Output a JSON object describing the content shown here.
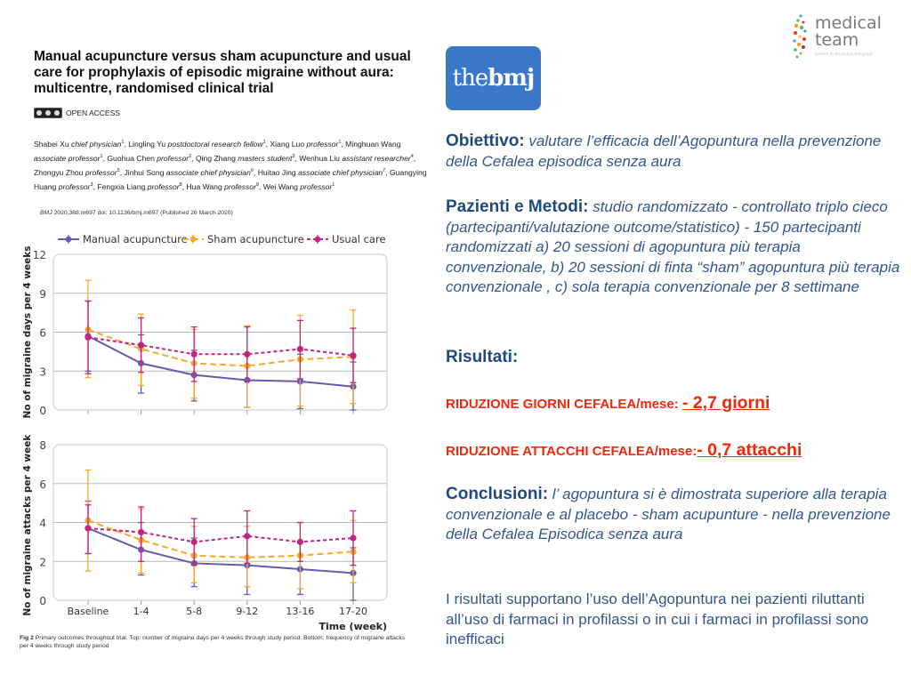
{
  "paper": {
    "title": "Manual acupuncture versus sham acupuncture and usual care for prophylaxis of episodic migraine without aura: multicentre, randomised clinical trial",
    "open_access": "OPEN ACCESS",
    "authors": [
      {
        "name": "Shabei Xu",
        "role": "chief physician",
        "aff": "1"
      },
      {
        "name": "Lingling Yu",
        "role": "postdoctoral research fellow",
        "aff": "1"
      },
      {
        "name": "Xiang Luo",
        "role": "professor",
        "aff": "1"
      },
      {
        "name": "Minghuan Wang",
        "role": "associate professor",
        "aff": "1"
      },
      {
        "name": "Guohua Chen",
        "role": "professor",
        "aff": "2"
      },
      {
        "name": "Qing Zhang",
        "role": "masters student",
        "aff": "3"
      },
      {
        "name": "Wenhua Liu",
        "role": "assistant researcher",
        "aff": "4"
      },
      {
        "name": "Zhongyu Zhou",
        "role": "professor",
        "aff": "5"
      },
      {
        "name": "Jinhui Song",
        "role": "associate chief physician",
        "aff": "6"
      },
      {
        "name": "Huitao Jing",
        "role": "associate chief physician",
        "aff": "7"
      },
      {
        "name": "Guangying Huang",
        "role": "professor",
        "aff": "3"
      },
      {
        "name": "Fengxia Liang",
        "role": "professor",
        "aff": "8"
      },
      {
        "name": "Hua Wang",
        "role": "professor",
        "aff": "8"
      },
      {
        "name": "Wei Wang",
        "role": "professor",
        "aff": "1"
      }
    ],
    "citation_journal": "BMJ",
    "citation_rest": " 2020;368:m697 doi: 10.1136/bmj.m697 (Published 26 March 2020)",
    "fig_label": "Fig 2",
    "fig_caption": "Primary outcomes throughout trial. Top: number of migraine days per 4 weeks through study period. Bottom: frequency of migraine attacks per 4 weeks through study period"
  },
  "logos": {
    "bmj_light": "the",
    "bmj_bold": "bmj",
    "medical_team_line1": "medical",
    "medical_team_line2": "team",
    "medical_team_tagline": "Centro di Medicina Integrata"
  },
  "summary": {
    "objective_head": "Obiettivo:",
    "objective_text": "valutare l’efficacia dell’Agopuntura nella prevenzione della Cefalea episodica senza aura",
    "methods_head": "Pazienti e Metodi:",
    "methods_text": "studio randomizzato - controllato triplo cieco (partecipanti/valutazione outcome/statistico) - 150 partecipanti randomizzati a)  20 sessioni di agopuntura  più terapia convenzionale, b) 20 sessioni di finta “sham” agopuntura più terapia convenzionale , c) sola terapia convenzionale per 8 settimane",
    "results_head": "Risultati:",
    "result1_label": "RIDUZIONE GIORNI CEFALEA/mese:",
    "result1_value": "- 2,7 giorni",
    "result2_label": "RIDUZIONE ATTACCHI CEFALEA/mese:",
    "result2_value": "- 0,7 attacchi",
    "conclusions_head": "Conclusioni:",
    "conclusions_text": "l’ agopuntura si è dimostrata superiore alla terapia convenzionale e al placebo - sham acupunture - nella prevenzione della Cefalea Episodica senza aura",
    "support_text": "I risultati supportano l’uso dell’Agopuntura nei pazienti riluttanti all’uso di farmaci in profilassi o in cui i farmaci in profilassi sono inefficaci"
  },
  "colors": {
    "manual": "#6a59a8",
    "sham": "#f2aa2c",
    "usual": "#c0257f",
    "grid": "#b8b8b8",
    "heading_blue": "#1f4a7f",
    "result_red": "#f2280c"
  },
  "chart_data": [
    {
      "type": "line",
      "title": "",
      "xlabel": "",
      "ylabel": "No of migraine days per 4 weeks",
      "categories": [
        "Baseline",
        "1-4",
        "5-8",
        "9-12",
        "13-16",
        "17-20"
      ],
      "ylim": [
        0,
        12
      ],
      "yticks": [
        0,
        3,
        6,
        9,
        12
      ],
      "grid": true,
      "legend": "top",
      "series": [
        {
          "name": "Manual acupuncture",
          "style": "solid",
          "values": [
            5.7,
            3.6,
            2.7,
            2.3,
            2.2,
            1.8
          ],
          "err_low": [
            3.0,
            1.3,
            0.7,
            0.2,
            0.1,
            0.0
          ],
          "err_high": [
            8.4,
            5.8,
            4.6,
            4.3,
            4.3,
            3.7
          ]
        },
        {
          "name": "Sham acupuncture",
          "style": "dashed",
          "values": [
            6.2,
            4.7,
            3.6,
            3.4,
            3.9,
            4.1
          ],
          "err_low": [
            2.5,
            1.9,
            0.9,
            0.2,
            0.3,
            0.5
          ],
          "err_high": [
            10.0,
            7.4,
            6.2,
            6.5,
            7.3,
            7.7
          ]
        },
        {
          "name": "Usual care",
          "style": "dotted",
          "values": [
            5.6,
            5.0,
            4.3,
            4.3,
            4.7,
            4.2
          ],
          "err_low": [
            2.8,
            2.9,
            2.2,
            2.2,
            2.4,
            2.1
          ],
          "err_high": [
            8.4,
            7.1,
            6.4,
            6.4,
            6.9,
            6.3
          ]
        }
      ]
    },
    {
      "type": "line",
      "title": "",
      "xlabel": "Time (week)",
      "ylabel": "No of migraine attacks per 4 weeks",
      "categories": [
        "Baseline",
        "1-4",
        "5-8",
        "9-12",
        "13-16",
        "17-20"
      ],
      "ylim": [
        0,
        8
      ],
      "yticks": [
        0,
        2,
        4,
        6,
        8
      ],
      "grid": true,
      "legend": "none",
      "series": [
        {
          "name": "Manual acupuncture",
          "style": "solid",
          "values": [
            3.7,
            2.6,
            1.9,
            1.8,
            1.6,
            1.4
          ],
          "err_low": [
            2.4,
            1.3,
            0.7,
            0.3,
            0.3,
            0.0
          ],
          "err_high": [
            5.1,
            4.0,
            3.2,
            3.3,
            3.0,
            2.7
          ]
        },
        {
          "name": "Sham acupuncture",
          "style": "dashed",
          "values": [
            4.1,
            3.1,
            2.3,
            2.2,
            2.3,
            2.5
          ],
          "err_low": [
            1.5,
            1.4,
            0.9,
            0.7,
            0.6,
            0.9
          ],
          "err_high": [
            6.7,
            4.7,
            3.8,
            3.8,
            4.0,
            4.1
          ]
        },
        {
          "name": "Usual care",
          "style": "dotted",
          "values": [
            3.7,
            3.5,
            3.0,
            3.3,
            3.0,
            3.2
          ],
          "err_low": [
            2.4,
            2.0,
            1.8,
            1.9,
            2.0,
            1.8
          ],
          "err_high": [
            4.9,
            4.8,
            4.2,
            4.6,
            4.0,
            4.6
          ]
        }
      ]
    }
  ]
}
